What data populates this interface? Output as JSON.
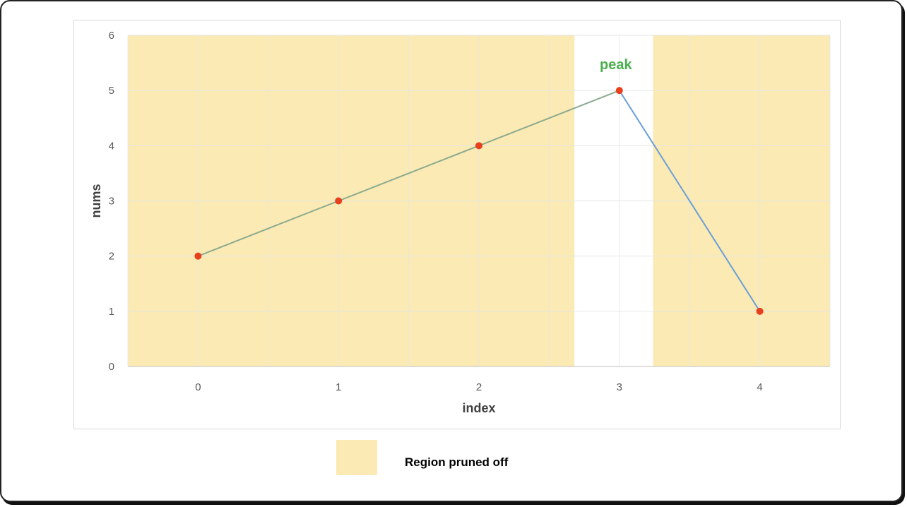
{
  "chart_data": {
    "type": "line",
    "x": [
      0,
      1,
      2,
      3,
      4
    ],
    "categories": [
      "0",
      "1",
      "2",
      "3",
      "4"
    ],
    "values": [
      2,
      3,
      4,
      5,
      1
    ],
    "xlabel": "index",
    "ylabel": "nums",
    "ylim": [
      0,
      6
    ],
    "yticks": [
      "0",
      "1",
      "2",
      "3",
      "4",
      "5",
      "6"
    ],
    "grid": true,
    "pruned_regions": [
      {
        "from": -0.5,
        "to": 2.68
      },
      {
        "from": 3.24,
        "to": 4.5
      }
    ],
    "annotations": [
      {
        "text": "peak",
        "x": 3,
        "y": 5
      }
    ],
    "legend": {
      "label": "Region pruned off",
      "placement": "bottom-center"
    }
  },
  "colors": {
    "pruned_fill": "#fbeab3",
    "line_left": "#8aaa8f",
    "line_right": "#6a9fd8",
    "marker": "#e8401c",
    "annotation": "#4caf50",
    "grid": "#e6e6e6"
  }
}
